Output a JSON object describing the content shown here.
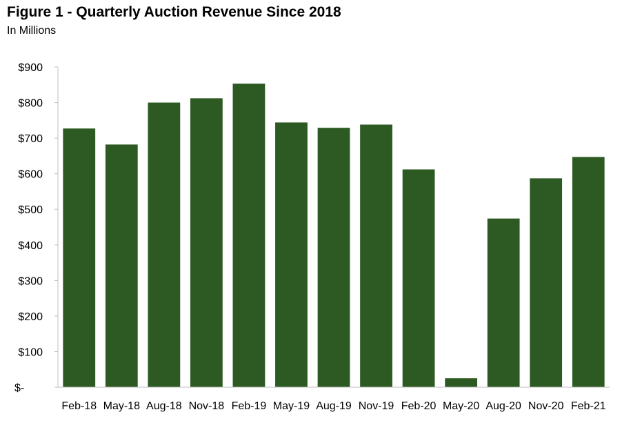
{
  "chart_data": {
    "type": "bar",
    "title": "Figure 1 - Quarterly Auction Revenue Since 2018",
    "subtitle": "In Millions",
    "xlabel": "",
    "ylabel": "",
    "categories": [
      "Feb-18",
      "May-18",
      "Aug-18",
      "Nov-18",
      "Feb-19",
      "May-19",
      "Aug-19",
      "Nov-19",
      "Feb-20",
      "May-20",
      "Aug-20",
      "Nov-20",
      "Feb-21"
    ],
    "values": [
      727,
      682,
      800,
      812,
      853,
      744,
      729,
      738,
      612,
      25,
      474,
      587,
      647
    ],
    "ylim": [
      0,
      900
    ],
    "yticks": [
      0,
      100,
      200,
      300,
      400,
      500,
      600,
      700,
      800,
      900
    ],
    "ytick_labels": [
      "$-",
      "$100",
      "$200",
      "$300",
      "$400",
      "$500",
      "$600",
      "$700",
      "$800",
      "$900"
    ],
    "grid": false,
    "legend": "none",
    "bar_color": "#2d5a23",
    "axis_color": "#bfbfbf"
  }
}
